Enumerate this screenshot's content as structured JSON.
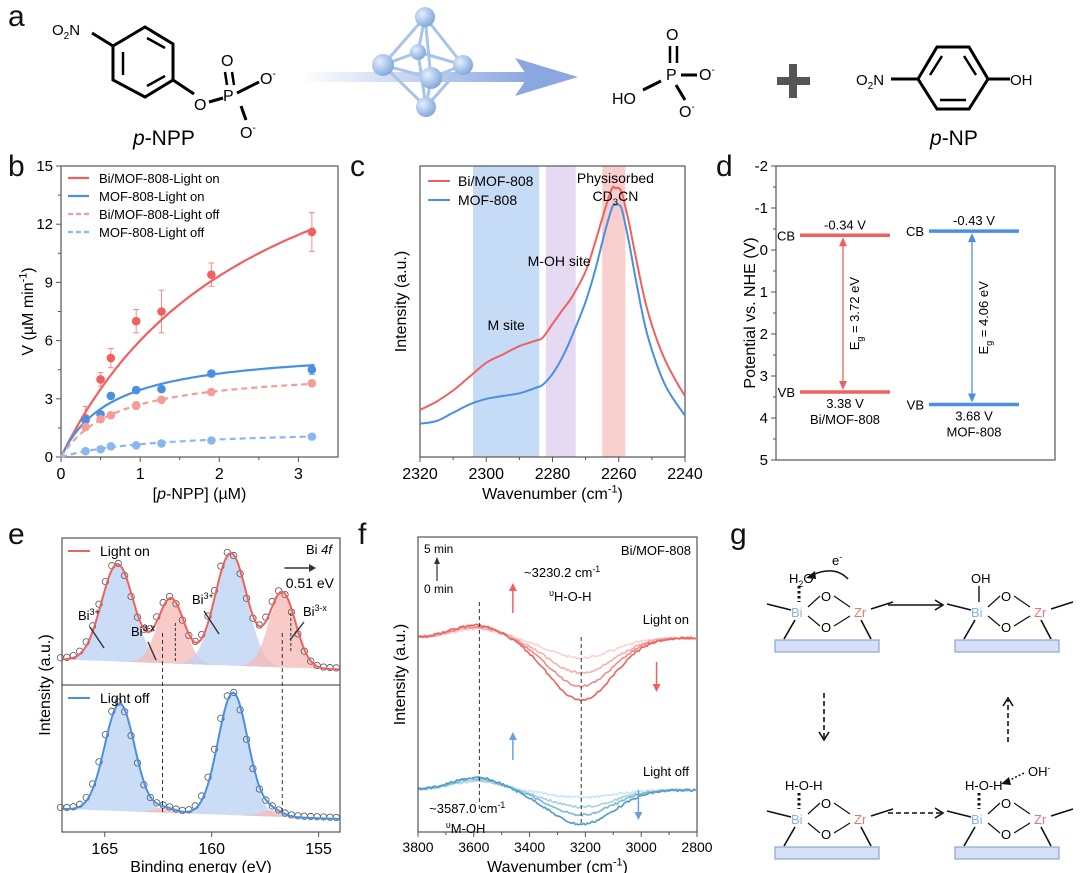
{
  "panels": {
    "a": {
      "label": "a",
      "reactant": {
        "name_prefix": "p",
        "name_suffix": "-NPP",
        "groups": {
          "nitro": "O2N",
          "ester_o": "O",
          "p": "P",
          "o_double": "O",
          "o_minus_1": "O",
          "o_minus_2": "O",
          "charge": "-"
        }
      },
      "phosphate": {
        "ho": "HO",
        "p": "P",
        "o_double": "O",
        "o_minus_1": "O",
        "o_minus_2": "O",
        "charge": "-"
      },
      "plus": "+",
      "product": {
        "name_prefix": "p",
        "name_suffix": "-NP",
        "groups": {
          "nitro": "O2N",
          "hydroxyl": "OH"
        }
      }
    },
    "b": {
      "label": "b"
    },
    "c": {
      "label": "c"
    },
    "d": {
      "label": "d"
    },
    "e": {
      "label": "e"
    },
    "f": {
      "label": "f"
    },
    "g": {
      "label": "g",
      "states": [
        {
          "adsorbate": "H2O",
          "bond": "dotted",
          "electron": "e-",
          "metal1": "Bi",
          "metal2": "Zr",
          "bridge_o": "O"
        },
        {
          "adsorbate": "OH",
          "bond": "solid",
          "metal1": "Bi",
          "metal2": "Zr",
          "bridge_o": "O"
        },
        {
          "adsorbate": "H-O-H",
          "bond": "dotted",
          "metal1": "Bi",
          "metal2": "Zr",
          "bridge_o": "O"
        },
        {
          "adsorbate": "H-O-H",
          "bond": "dotted",
          "incoming": "OH-",
          "metal1": "Bi",
          "metal2": "Zr",
          "bridge_o": "O"
        }
      ],
      "colors": {
        "bi": "#8fb3dd",
        "zr": "#f2736e",
        "support": "#d5e0f5"
      }
    }
  },
  "chart_data": [
    {
      "panel": "b",
      "type": "scatter",
      "xlabel": "[p-NPP] (µM)",
      "ylabel": "V (µM min-1)",
      "xlim": [
        0,
        3.5
      ],
      "ylim": [
        0,
        15
      ],
      "xticks": [
        0,
        1,
        2,
        3
      ],
      "yticks": [
        0,
        3,
        6,
        9,
        12,
        15
      ],
      "legend_position": "top-left",
      "series": [
        {
          "name": "Bi/MOF-808-Light on",
          "style": "solid",
          "color": "#f0605e",
          "x": [
            0.31,
            0.5,
            0.63,
            0.95,
            1.27,
            1.9,
            3.17
          ],
          "y": [
            2.0,
            4.0,
            5.1,
            7.0,
            7.5,
            9.4,
            11.6
          ],
          "err": [
            0.6,
            0.35,
            0.5,
            0.6,
            1.1,
            0.6,
            1.0
          ],
          "fit": {
            "vmax": 21.0,
            "km": 2.5
          }
        },
        {
          "name": "MOF-808-Light on",
          "style": "solid",
          "color": "#4a90e2",
          "x": [
            0.31,
            0.5,
            0.63,
            0.95,
            1.27,
            1.9,
            3.17
          ],
          "y": [
            1.9,
            2.2,
            3.15,
            3.45,
            3.5,
            4.3,
            4.5
          ],
          "err": [
            0.15,
            0.1,
            0.15,
            0.1,
            0.1,
            0.15,
            0.25
          ],
          "fit": {
            "vmax": 5.7,
            "km": 0.65
          }
        },
        {
          "name": "Bi/MOF-808-Light off",
          "style": "dashed",
          "color": "#f59c99",
          "x": [
            0.31,
            0.5,
            0.63,
            0.95,
            1.27,
            1.9,
            3.17
          ],
          "y": [
            1.55,
            1.95,
            2.15,
            2.65,
            2.95,
            3.35,
            3.8
          ],
          "err": [
            0.15,
            0.1,
            0.1,
            0.2,
            0.15,
            0.15,
            0.1
          ],
          "fit": {
            "vmax": 4.6,
            "km": 0.7
          }
        },
        {
          "name": "MOF-808-Light off",
          "style": "dashed",
          "color": "#8ab8ee",
          "x": [
            0.31,
            0.5,
            0.63,
            0.95,
            1.27,
            1.9,
            3.17
          ],
          "y": [
            0.3,
            0.4,
            0.55,
            0.6,
            0.7,
            0.85,
            1.05
          ],
          "err": [
            0.1,
            0.08,
            0.08,
            0.1,
            0.15,
            0.1,
            0.08
          ],
          "fit": {
            "vmax": 1.45,
            "km": 1.2
          }
        }
      ]
    },
    {
      "panel": "c",
      "type": "line",
      "xlabel": "Wavenumber (cm-1)",
      "ylabel": "Intensity (a.u.)",
      "xlim": [
        2320,
        2240
      ],
      "xticks": [
        2320,
        2300,
        2280,
        2260,
        2240
      ],
      "legend_position": "top-left",
      "bands": [
        {
          "label": "M site",
          "from": 2304,
          "to": 2284,
          "color": "#c6dbf5"
        },
        {
          "label": "M-OH site",
          "from": 2282,
          "to": 2273,
          "color": "#e6daf2"
        },
        {
          "label": "Physisorbed CD3CN",
          "from": 2265,
          "to": 2258,
          "color": "#f9cfcd"
        }
      ],
      "series": [
        {
          "name": "Bi/MOF-808",
          "color": "#f0605e",
          "x": [
            2320,
            2315,
            2310,
            2305,
            2300,
            2295,
            2290,
            2285,
            2283,
            2280,
            2277,
            2274,
            2270,
            2267,
            2264,
            2262,
            2261,
            2260,
            2259,
            2257,
            2255,
            2252,
            2249,
            2246,
            2243,
            2240
          ],
          "y": [
            0.17,
            0.2,
            0.24,
            0.29,
            0.34,
            0.37,
            0.4,
            0.42,
            0.43,
            0.48,
            0.53,
            0.58,
            0.67,
            0.78,
            0.9,
            0.97,
            0.97,
            0.97,
            0.95,
            0.85,
            0.73,
            0.56,
            0.44,
            0.35,
            0.28,
            0.22
          ]
        },
        {
          "name": "MOF-808",
          "color": "#4a90e2",
          "x": [
            2320,
            2315,
            2310,
            2305,
            2300,
            2295,
            2290,
            2285,
            2283,
            2280,
            2277,
            2274,
            2270,
            2267,
            2264,
            2262,
            2261,
            2260,
            2259,
            2257,
            2255,
            2252,
            2249,
            2246,
            2243,
            2240
          ],
          "y": [
            0.12,
            0.13,
            0.16,
            0.19,
            0.21,
            0.22,
            0.23,
            0.25,
            0.26,
            0.3,
            0.36,
            0.44,
            0.56,
            0.68,
            0.82,
            0.9,
            0.91,
            0.91,
            0.89,
            0.78,
            0.65,
            0.47,
            0.35,
            0.26,
            0.2,
            0.15
          ]
        }
      ]
    },
    {
      "panel": "d",
      "type": "bar",
      "ylabel": "Potential vs. NHE (V)",
      "ylim": [
        -2,
        5
      ],
      "yticks": [
        -2,
        -1,
        0,
        1,
        2,
        3,
        4,
        5
      ],
      "y_inverted": true,
      "categories": [
        "Bi/MOF-808",
        "MOF-808"
      ],
      "series": [
        {
          "name": "Bi/MOF-808",
          "color": "#f0605e",
          "cb": -0.34,
          "vb": 3.38,
          "cb_label": "-0.34 V",
          "vb_label": "3.38 V",
          "eg_label": "Eg = 3.72 eV"
        },
        {
          "name": "MOF-808",
          "color": "#4a90e2",
          "cb": -0.43,
          "vb": 3.68,
          "cb_label": "-0.43 V",
          "vb_label": "3.68 V",
          "eg_label": "Eg = 4.06 eV"
        }
      ],
      "level_labels": {
        "cb": "CB",
        "vb": "VB"
      }
    },
    {
      "panel": "e",
      "type": "line",
      "xlabel": "Binding energy (eV)",
      "ylabel": "Intensity (a.u.)",
      "xlim": [
        167,
        154
      ],
      "xticks": [
        165,
        160,
        155
      ],
      "title_annotation": "Bi 4f",
      "shift_annotation": "0.51 eV",
      "peak_labels": [
        "Bi3+",
        "Bi3-x",
        "Bi3+",
        "Bi3-x"
      ],
      "subpanels": [
        {
          "name": "Light on",
          "color": "#f0605e",
          "peaks": [
            {
              "center": 164.4,
              "amp": 0.78,
              "width": 0.75,
              "type": "Bi3+"
            },
            {
              "center": 161.9,
              "amp": 0.52,
              "width": 0.62,
              "type": "Bi3-x"
            },
            {
              "center": 159.1,
              "amp": 0.9,
              "width": 0.75,
              "type": "Bi3+"
            },
            {
              "center": 156.7,
              "amp": 0.6,
              "width": 0.62,
              "type": "Bi3-x"
            }
          ]
        },
        {
          "name": "Light off",
          "color": "#4a90e2",
          "peaks": [
            {
              "center": 164.3,
              "amp": 0.86,
              "width": 0.7,
              "type": "Bi3+"
            },
            {
              "center": 162.2,
              "amp": 0.04,
              "width": 0.5,
              "type": "Bi3-x"
            },
            {
              "center": 159.0,
              "amp": 0.98,
              "width": 0.7,
              "type": "Bi3+"
            },
            {
              "center": 157.2,
              "amp": 0.05,
              "width": 0.5,
              "type": "Bi3-x"
            }
          ]
        }
      ],
      "reference_lines": [
        162.3,
        156.7
      ]
    },
    {
      "panel": "f",
      "type": "line",
      "xlabel": "Wavenumber (cm-1)",
      "ylabel": "Intensity (a.u.)",
      "xlim": [
        3800,
        2800
      ],
      "xticks": [
        3800,
        3600,
        3400,
        3200,
        3000,
        2800
      ],
      "sample_label": "Bi/MOF-808",
      "time_arrow": {
        "start": "0 min",
        "end": "5 min"
      },
      "annotations": [
        {
          "text": "~3230.2 cm-1",
          "mode": "υH-O-H",
          "x": 3215
        },
        {
          "text": "~3587.0 cm-1",
          "mode": "υM-OH",
          "x": 3580
        }
      ],
      "groups": [
        {
          "name": "Light on",
          "color": "#f0605e",
          "dip_depths": [
            0.2,
            0.35,
            0.48,
            0.62
          ],
          "center": 3215
        },
        {
          "name": "Light off",
          "color": "#4a9dc8",
          "dip_depths": [
            0.08,
            0.18,
            0.26,
            0.36
          ],
          "center": 3215
        }
      ]
    }
  ]
}
